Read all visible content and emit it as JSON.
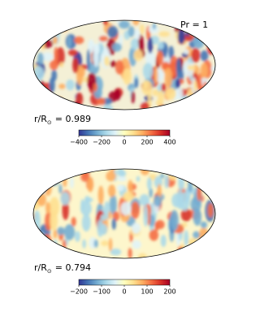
{
  "annotation": "Pr = 1",
  "panels": [
    {
      "label": "r/R",
      "label_subscript": "⊙",
      "label_value": "= 0.989",
      "colorbar": {
        "range": [
          -400,
          400
        ],
        "ticks": [
          {
            "value": -400,
            "label": "−400"
          },
          {
            "value": -200,
            "label": "−200"
          },
          0,
          200,
          400
        ]
      }
    },
    {
      "label": "r/R",
      "label_subscript": "⊙",
      "label_value": "= 0.794",
      "colorbar": {
        "range": [
          -200,
          200
        ],
        "ticks": [
          {
            "value": -200,
            "label": "−200"
          },
          {
            "value": -100,
            "label": "−100"
          },
          0,
          100,
          200
        ]
      }
    }
  ]
}
